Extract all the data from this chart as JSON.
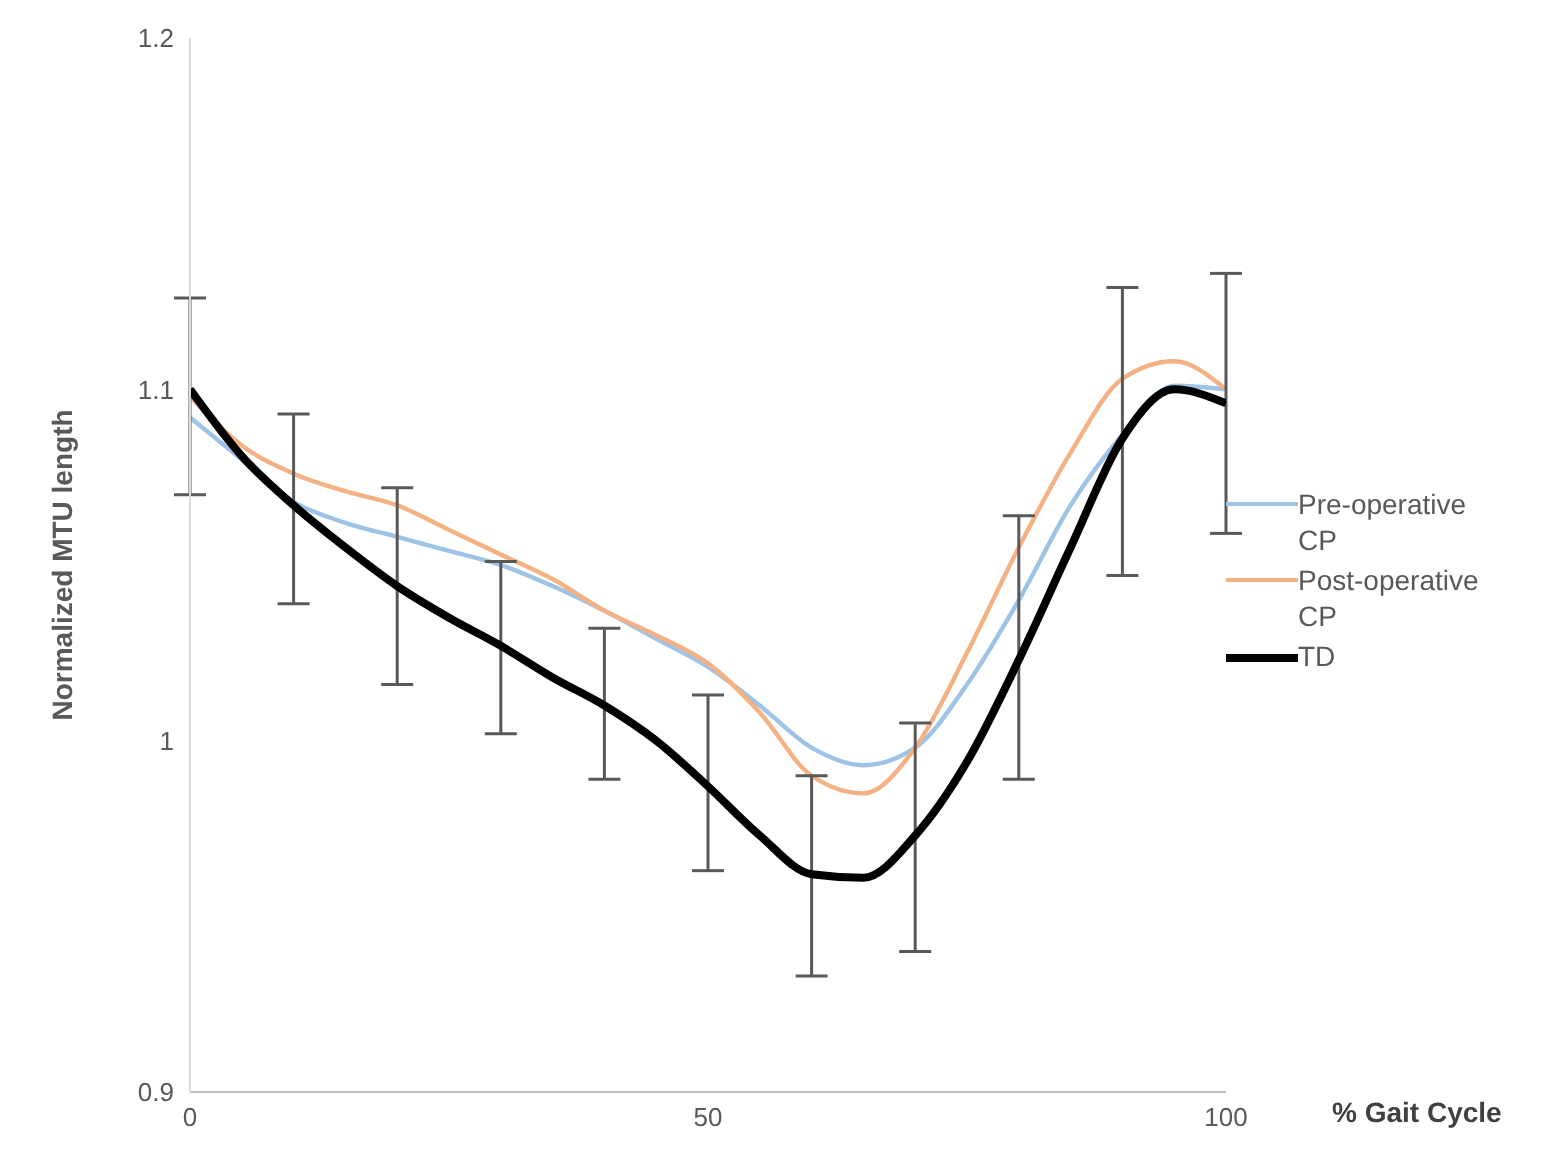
{
  "chart_data": {
    "type": "line",
    "xlabel": "% Gait Cycle",
    "ylabel": "Normalized MTU length",
    "x": [
      0,
      5,
      10,
      15,
      20,
      25,
      30,
      35,
      40,
      45,
      50,
      55,
      60,
      65,
      70,
      75,
      80,
      85,
      90,
      95,
      100
    ],
    "xlim": [
      0,
      100
    ],
    "xticks": [
      0,
      50,
      100
    ],
    "ylim": [
      0.9,
      1.2
    ],
    "yticks": [
      0.9,
      1,
      1.1,
      1.2
    ],
    "grid": false,
    "legend": "right",
    "marker": "none",
    "line_style": "solid",
    "series": [
      {
        "name": "Pre-operative CP",
        "color": "#9dc3e6",
        "values": [
          1.092,
          1.08,
          1.068,
          1.062,
          1.058,
          1.054,
          1.05,
          1.044,
          1.037,
          1.029,
          1.021,
          1.01,
          0.998,
          0.993,
          0.998,
          1.016,
          1.04,
          1.067,
          1.087,
          1.101,
          1.1
        ]
      },
      {
        "name": "Post-operative CP",
        "color": "#f4b183",
        "values": [
          1.098,
          1.084,
          1.076,
          1.071,
          1.067,
          1.06,
          1.053,
          1.046,
          1.037,
          1.03,
          1.022,
          1.008,
          0.99,
          0.985,
          0.998,
          1.025,
          1.055,
          1.082,
          1.103,
          1.108,
          1.1
        ]
      },
      {
        "name": "TD",
        "color": "#000000",
        "values": [
          1.1,
          1.081,
          1.067,
          1.055,
          1.044,
          1.035,
          1.027,
          1.018,
          1.01,
          1.0,
          0.987,
          0.973,
          0.962,
          0.961,
          0.973,
          0.994,
          1.023,
          1.055,
          1.086,
          1.1,
          1.096
        ],
        "errors": [
          [
            1.07,
            1.126
          ],
          null,
          [
            1.039,
            1.093
          ],
          null,
          [
            1.016,
            1.072
          ],
          null,
          [
            1.002,
            1.051
          ],
          null,
          [
            0.989,
            1.032
          ],
          null,
          [
            0.963,
            1.013
          ],
          null,
          [
            0.933,
            0.99
          ],
          null,
          [
            0.94,
            1.005
          ],
          null,
          [
            0.989,
            1.064
          ],
          null,
          [
            1.047,
            1.129
          ],
          null,
          [
            1.059,
            1.133
          ]
        ]
      }
    ]
  }
}
